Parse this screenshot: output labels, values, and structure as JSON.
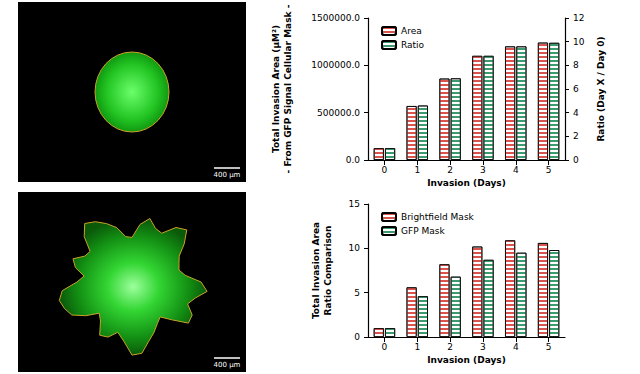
{
  "images": [
    {
      "scale_bar": "400 µm"
    },
    {
      "scale_bar": "400 µm"
    }
  ],
  "chart_data": [
    {
      "type": "bar",
      "xlabel": "Invasion (Days)",
      "ylabel": "Total Invasion Area (µM²)\n- From GFP Signal Cellular Mask -",
      "y2label": "Ratio (Day X / Day 0)",
      "categories": [
        "0",
        "1",
        "2",
        "3",
        "4",
        "5"
      ],
      "series": [
        {
          "name": "Area",
          "color": "#d9534f",
          "values": [
            125000,
            570000,
            860000,
            1100000,
            1200000,
            1240000
          ]
        },
        {
          "name": "Ratio",
          "color": "#3c9a6e",
          "axis": "y2",
          "values": [
            1.0,
            4.6,
            6.9,
            8.8,
            9.6,
            9.9
          ]
        }
      ],
      "ylim": [
        0,
        1500000
      ],
      "yticks": [
        {
          "value": 0,
          "label": "0.0"
        },
        {
          "value": 500000,
          "label": "500000.0"
        },
        {
          "value": 1000000,
          "label": "1000000.0"
        },
        {
          "value": 1500000,
          "label": "1500000.0"
        }
      ],
      "y2lim": [
        0,
        12
      ],
      "y2ticks": [
        0,
        2,
        4,
        6,
        8,
        10,
        12
      ],
      "legend": "upper left",
      "grid": false
    },
    {
      "type": "bar",
      "xlabel": "Invasion (Days)",
      "ylabel": "Total Invasion Area\nRatio Comparison",
      "categories": [
        "0",
        "1",
        "2",
        "3",
        "4",
        "5"
      ],
      "series": [
        {
          "name": "Brightfield Mask",
          "color": "#d9534f",
          "values": [
            1.0,
            5.6,
            8.2,
            10.2,
            10.9,
            10.6
          ]
        },
        {
          "name": "GFP Mask",
          "color": "#3c9a6e",
          "values": [
            1.0,
            4.6,
            6.8,
            8.7,
            9.5,
            9.8
          ]
        }
      ],
      "ylim": [
        0,
        15
      ],
      "yticks": [
        0,
        5,
        10,
        15
      ],
      "legend": "upper left",
      "grid": false
    }
  ]
}
